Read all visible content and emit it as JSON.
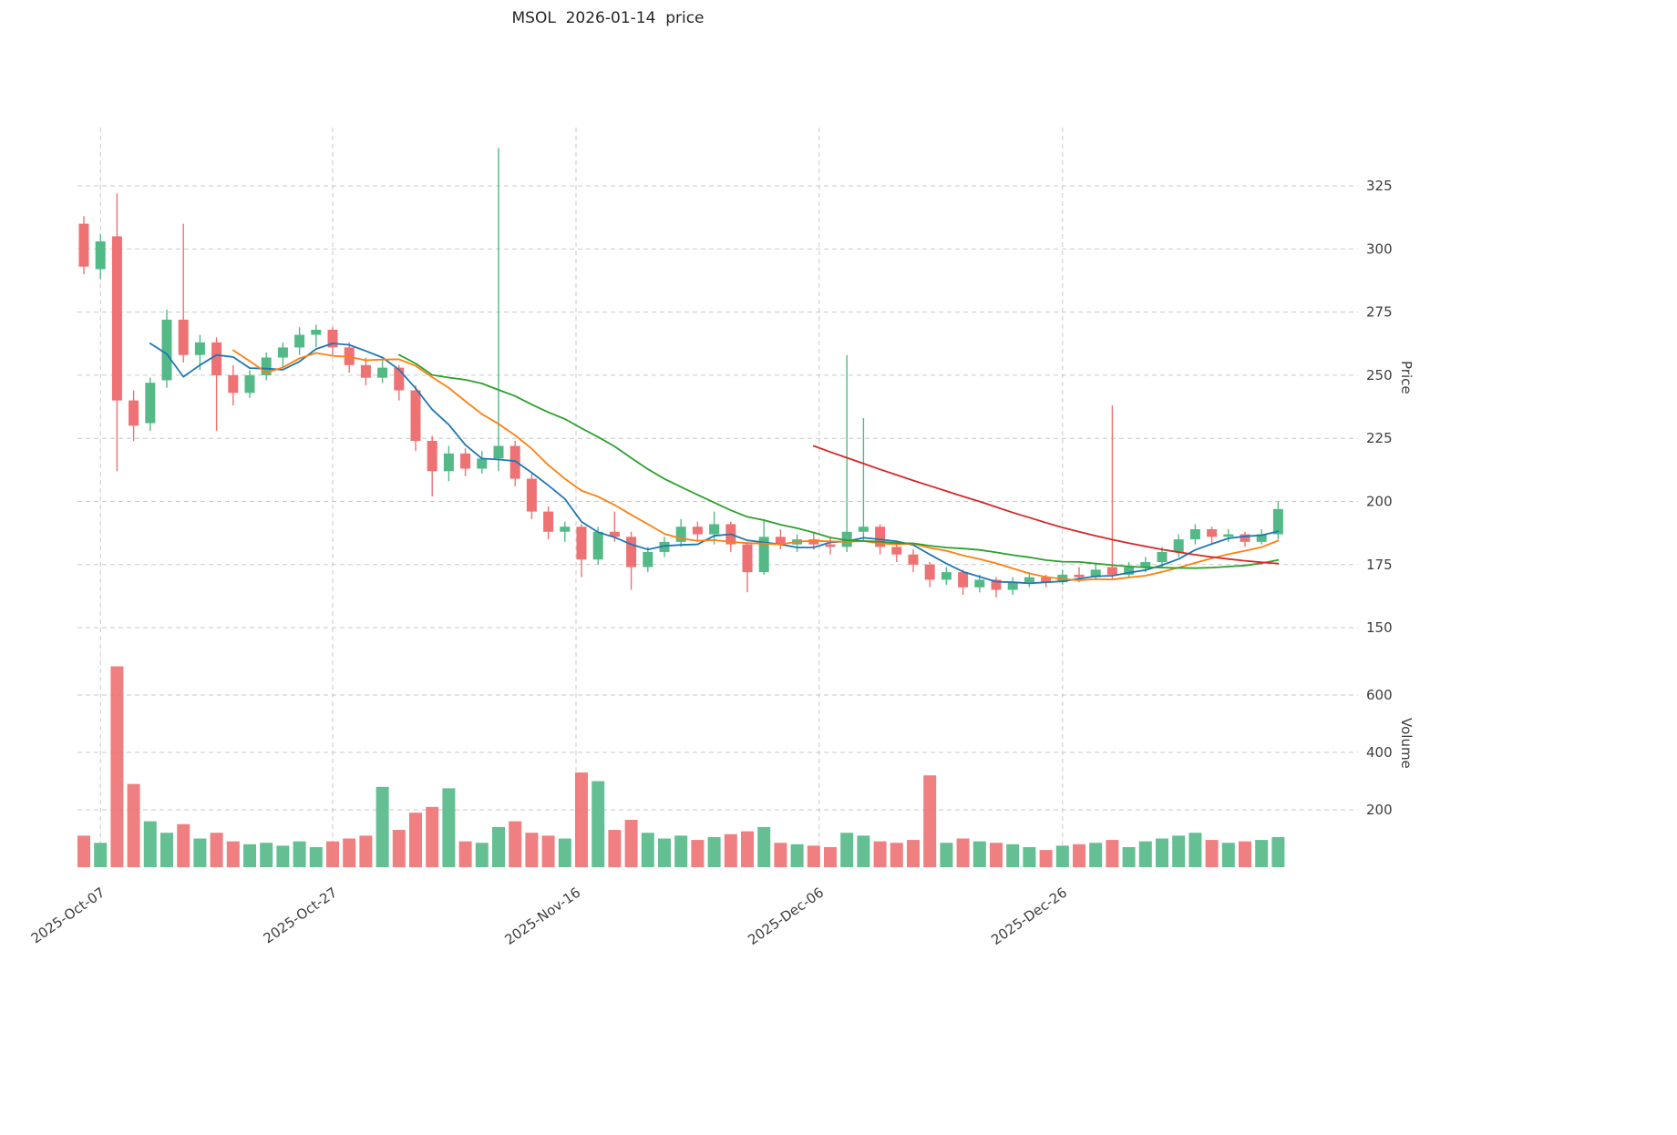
{
  "title": "MSOL  2026-01-14  price",
  "price_axis_label": "Price",
  "volume_axis_label": "Volume",
  "colors": {
    "up": "#53b987",
    "down": "#ee7173",
    "ma_short": "#1f77b4",
    "ma_mid": "#ff7f0e",
    "ma_long": "#2ca02c",
    "ma_xlong": "#d62728",
    "grid": "#c9c9c9",
    "text": "#3d3d3d",
    "background": "#ffffff"
  },
  "chart_data": {
    "type": "candlestick+volume",
    "title": "MSOL  2026-01-14  price",
    "ylabel_price": "Price",
    "ylabel_volume": "Volume",
    "grid": true,
    "price_ticks": [
      150,
      175,
      200,
      225,
      250,
      275,
      300,
      325
    ],
    "volume_ticks": [
      200,
      400,
      600
    ],
    "x_tick_labels": [
      "2025-Oct-07",
      "2025-Oct-27",
      "2025-Nov-16",
      "2025-Dec-06",
      "2025-Dec-26"
    ],
    "x_tick_indices": [
      1,
      15,
      29.67,
      44.33,
      59
    ],
    "ohlcv_columns": [
      "date",
      "open",
      "high",
      "low",
      "close",
      "volume"
    ],
    "ohlcv": [
      [
        "2025-10-06",
        310,
        313,
        290,
        293,
        110
      ],
      [
        "2025-10-07",
        292,
        306,
        288,
        303,
        85
      ],
      [
        "2025-10-08",
        305,
        322,
        212,
        240,
        700
      ],
      [
        "2025-10-09",
        240,
        244,
        224,
        230,
        290
      ],
      [
        "2025-10-10",
        231,
        249,
        228,
        247,
        160
      ],
      [
        "2025-10-13",
        248,
        276,
        245,
        272,
        120
      ],
      [
        "2025-10-14",
        272,
        310,
        255,
        258,
        150
      ],
      [
        "2025-10-15",
        258,
        266,
        252,
        263,
        100
      ],
      [
        "2025-10-16",
        263,
        265,
        228,
        250,
        120
      ],
      [
        "2025-10-17",
        250,
        254,
        238,
        243,
        90
      ],
      [
        "2025-10-20",
        243,
        252,
        241,
        250,
        80
      ],
      [
        "2025-10-21",
        250,
        259,
        248,
        257,
        85
      ],
      [
        "2025-10-22",
        257,
        263,
        253,
        261,
        75
      ],
      [
        "2025-10-23",
        261,
        269,
        258,
        266,
        90
      ],
      [
        "2025-10-24",
        266,
        270,
        261,
        268,
        70
      ],
      [
        "2025-10-27",
        268,
        269,
        258,
        261,
        90
      ],
      [
        "2025-10-28",
        261,
        263,
        251,
        254,
        100
      ],
      [
        "2025-10-29",
        254,
        257,
        246,
        249,
        110
      ],
      [
        "2025-10-30",
        249,
        256,
        247,
        253,
        280
      ],
      [
        "2025-10-31",
        253,
        254,
        240,
        244,
        130
      ],
      [
        "2025-11-03",
        244,
        246,
        220,
        224,
        190
      ],
      [
        "2025-11-04",
        224,
        226,
        202,
        212,
        210
      ],
      [
        "2025-11-05",
        212,
        222,
        208,
        219,
        275
      ],
      [
        "2025-11-06",
        219,
        221,
        210,
        213,
        90
      ],
      [
        "2025-11-07",
        213,
        220,
        211,
        217,
        85
      ],
      [
        "2025-11-10",
        217,
        340,
        212,
        222,
        140
      ],
      [
        "2025-11-11",
        222,
        224,
        206,
        209,
        160
      ],
      [
        "2025-11-12",
        209,
        211,
        193,
        196,
        120
      ],
      [
        "2025-11-13",
        196,
        198,
        185,
        188,
        110
      ],
      [
        "2025-11-14",
        188,
        192,
        184,
        190,
        100
      ],
      [
        "2025-11-17",
        190,
        191,
        170,
        177,
        330
      ],
      [
        "2025-11-18",
        177,
        190,
        175,
        188,
        300
      ],
      [
        "2025-11-19",
        188,
        196,
        184,
        186,
        130
      ],
      [
        "2025-11-20",
        186,
        188,
        165,
        174,
        165
      ],
      [
        "2025-11-21",
        174,
        182,
        172,
        180,
        120
      ],
      [
        "2025-11-24",
        180,
        186,
        178,
        184,
        100
      ],
      [
        "2025-11-25",
        184,
        193,
        182,
        190,
        110
      ],
      [
        "2025-11-26",
        190,
        192,
        184,
        187,
        95
      ],
      [
        "2025-11-27",
        187,
        196,
        183,
        191,
        105
      ],
      [
        "2025-11-28",
        191,
        192,
        180,
        183,
        115
      ],
      [
        "2025-12-01",
        183,
        184,
        164,
        172,
        125
      ],
      [
        "2025-12-02",
        172,
        193,
        171,
        186,
        140
      ],
      [
        "2025-12-03",
        186,
        189,
        181,
        183,
        85
      ],
      [
        "2025-12-04",
        183,
        187,
        180,
        185,
        80
      ],
      [
        "2025-12-05",
        185,
        188,
        181,
        183,
        75
      ],
      [
        "2025-12-08",
        183,
        186,
        179,
        182,
        70
      ],
      [
        "2025-12-09",
        182,
        258,
        180,
        188,
        120
      ],
      [
        "2025-12-10",
        188,
        233,
        184,
        190,
        110
      ],
      [
        "2025-12-11",
        190,
        191,
        179,
        182,
        90
      ],
      [
        "2025-12-12",
        182,
        184,
        176,
        179,
        85
      ],
      [
        "2025-12-15",
        179,
        181,
        172,
        175,
        95
      ],
      [
        "2025-12-16",
        175,
        176,
        166,
        169,
        320
      ],
      [
        "2025-12-17",
        169,
        174,
        167,
        172,
        85
      ],
      [
        "2025-12-18",
        172,
        173,
        163,
        166,
        100
      ],
      [
        "2025-12-19",
        166,
        171,
        164,
        169,
        90
      ],
      [
        "2025-12-22",
        169,
        170,
        162,
        165,
        85
      ],
      [
        "2025-12-23",
        165,
        170,
        163,
        168,
        80
      ],
      [
        "2025-12-24",
        168,
        172,
        166,
        170,
        70
      ],
      [
        "2025-12-25",
        170,
        171,
        166,
        168,
        60
      ],
      [
        "2025-12-26",
        168,
        173,
        167,
        171,
        75
      ],
      [
        "2025-12-29",
        171,
        174,
        168,
        170,
        80
      ],
      [
        "2025-12-30",
        170,
        175,
        169,
        173,
        85
      ],
      [
        "2025-12-31",
        174,
        238,
        169,
        171,
        95
      ],
      [
        "2026-01-01",
        171,
        176,
        170,
        174,
        70
      ],
      [
        "2026-01-02",
        174,
        178,
        172,
        176,
        90
      ],
      [
        "2026-01-05",
        176,
        182,
        174,
        180,
        100
      ],
      [
        "2026-01-06",
        180,
        187,
        178,
        185,
        110
      ],
      [
        "2026-01-07",
        185,
        191,
        183,
        189,
        120
      ],
      [
        "2026-01-08",
        189,
        190,
        183,
        186,
        95
      ],
      [
        "2026-01-09",
        186,
        189,
        184,
        187,
        85
      ],
      [
        "2026-01-12",
        187,
        188,
        182,
        184,
        90
      ],
      [
        "2026-01-13",
        184,
        189,
        183,
        187,
        95
      ],
      [
        "2026-01-14",
        187,
        200,
        185,
        197,
        105
      ]
    ],
    "ma_lines": [
      {
        "name": "SMA5",
        "color_key": "ma_short",
        "window": 5,
        "source": "computed"
      },
      {
        "name": "SMA10",
        "color_key": "ma_mid",
        "window": 10,
        "source": "computed"
      },
      {
        "name": "SMA20",
        "color_key": "ma_long",
        "window": 20,
        "source": "computed"
      },
      {
        "name": "SMA50",
        "color_key": "ma_xlong",
        "start_index": 44,
        "values": [
          222,
          219.6,
          217.3,
          215,
          212.7,
          210.5,
          208.3,
          206.2,
          204.1,
          202,
          200,
          197.8,
          195.6,
          193.6,
          191.6,
          189.7,
          188,
          186.4,
          184.9,
          183.5,
          182.2,
          181,
          179.9,
          178.9,
          178,
          177.2,
          176.5,
          175.9,
          175.4
        ]
      }
    ],
    "layout": {
      "price_ylim": [
        143,
        348
      ],
      "volume_ylim": [
        0,
        770
      ],
      "legend": "none"
    }
  }
}
